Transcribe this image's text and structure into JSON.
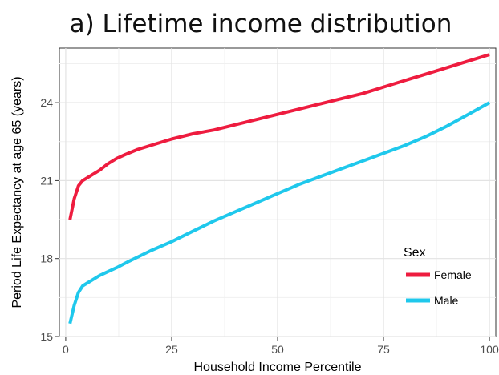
{
  "chart_data": {
    "type": "line",
    "title": "a) Lifetime income distribution",
    "xlabel": "Household Income Percentile",
    "ylabel": "Period Life Expectancy at age 65 (years)",
    "xlim": [
      -1.5,
      101.5
    ],
    "ylim": [
      15.0,
      26.1
    ],
    "xticks": [
      0,
      25,
      50,
      75,
      100
    ],
    "yticks": [
      15,
      18,
      21,
      24
    ],
    "grid": true,
    "legend": {
      "title": "Sex",
      "position": "bottom-right"
    },
    "series": [
      {
        "name": "Female",
        "color": "#ee1c3f",
        "x": [
          1,
          2,
          3,
          4,
          5,
          6,
          8,
          10,
          12,
          14,
          17,
          20,
          25,
          30,
          35,
          40,
          45,
          50,
          55,
          60,
          65,
          70,
          75,
          80,
          85,
          90,
          95,
          100
        ],
        "y": [
          19.5,
          20.3,
          20.8,
          21.0,
          21.1,
          21.2,
          21.4,
          21.65,
          21.85,
          22.0,
          22.2,
          22.35,
          22.6,
          22.8,
          22.95,
          23.15,
          23.35,
          23.55,
          23.75,
          23.95,
          24.15,
          24.35,
          24.6,
          24.85,
          25.1,
          25.35,
          25.6,
          25.85
        ]
      },
      {
        "name": "Male",
        "color": "#1fc8ec",
        "x": [
          1,
          2,
          3,
          4,
          5,
          6,
          8,
          10,
          12,
          15,
          20,
          25,
          30,
          35,
          40,
          45,
          50,
          55,
          60,
          65,
          70,
          75,
          80,
          85,
          90,
          95,
          100
        ],
        "y": [
          15.5,
          16.2,
          16.7,
          16.95,
          17.05,
          17.15,
          17.35,
          17.5,
          17.65,
          17.9,
          18.3,
          18.65,
          19.05,
          19.45,
          19.8,
          20.15,
          20.5,
          20.85,
          21.15,
          21.45,
          21.75,
          22.05,
          22.35,
          22.7,
          23.1,
          23.55,
          24.0
        ]
      }
    ]
  }
}
